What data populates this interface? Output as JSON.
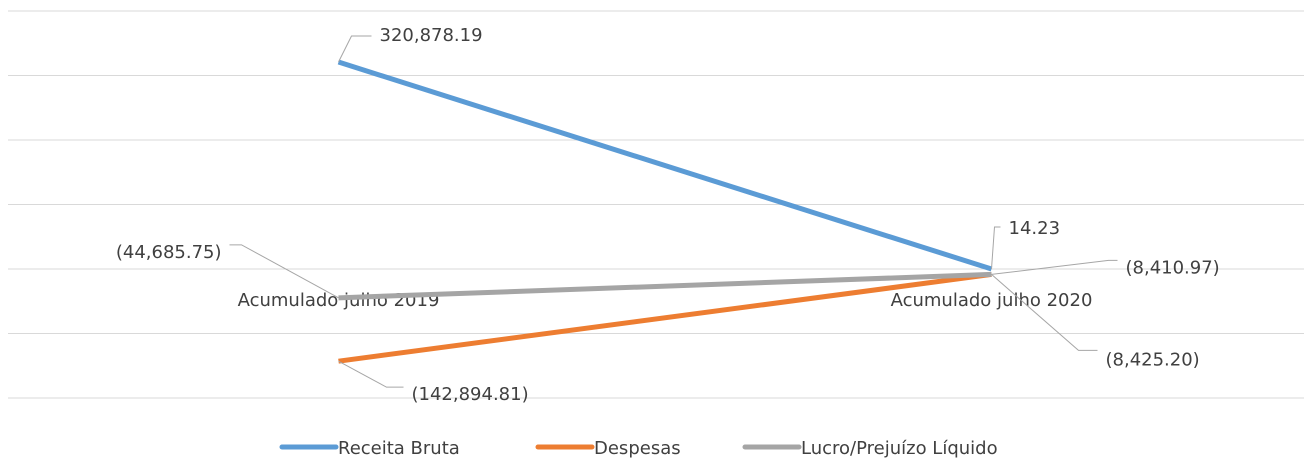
{
  "chart_data": {
    "type": "line",
    "categories": [
      "Acumulado julho 2019",
      "Acumulado julho 2020"
    ],
    "series": [
      {
        "name": "Receita Bruta",
        "color": "#5b9bd5",
        "values": [
          320878.19,
          14.23
        ],
        "value_labels": [
          "320,878.19",
          "14.23"
        ]
      },
      {
        "name": "Despesas",
        "color": "#ed7d31",
        "values": [
          -142894.81,
          -8425.2
        ],
        "value_labels": [
          "(142,894.81)",
          "(8,425.20)"
        ]
      },
      {
        "name": "Lucro/Prejuízo Líquido",
        "color": "#a5a5a5",
        "values": [
          -44685.75,
          -8410.97
        ],
        "value_labels": [
          "(44,685.75)",
          "(8,410.97)"
        ]
      }
    ],
    "ylim": [
      -200000,
      400000
    ],
    "yticks": [
      -200000,
      -100000,
      0,
      100000,
      200000,
      300000,
      400000
    ],
    "grid": true,
    "legend": "bottom"
  }
}
